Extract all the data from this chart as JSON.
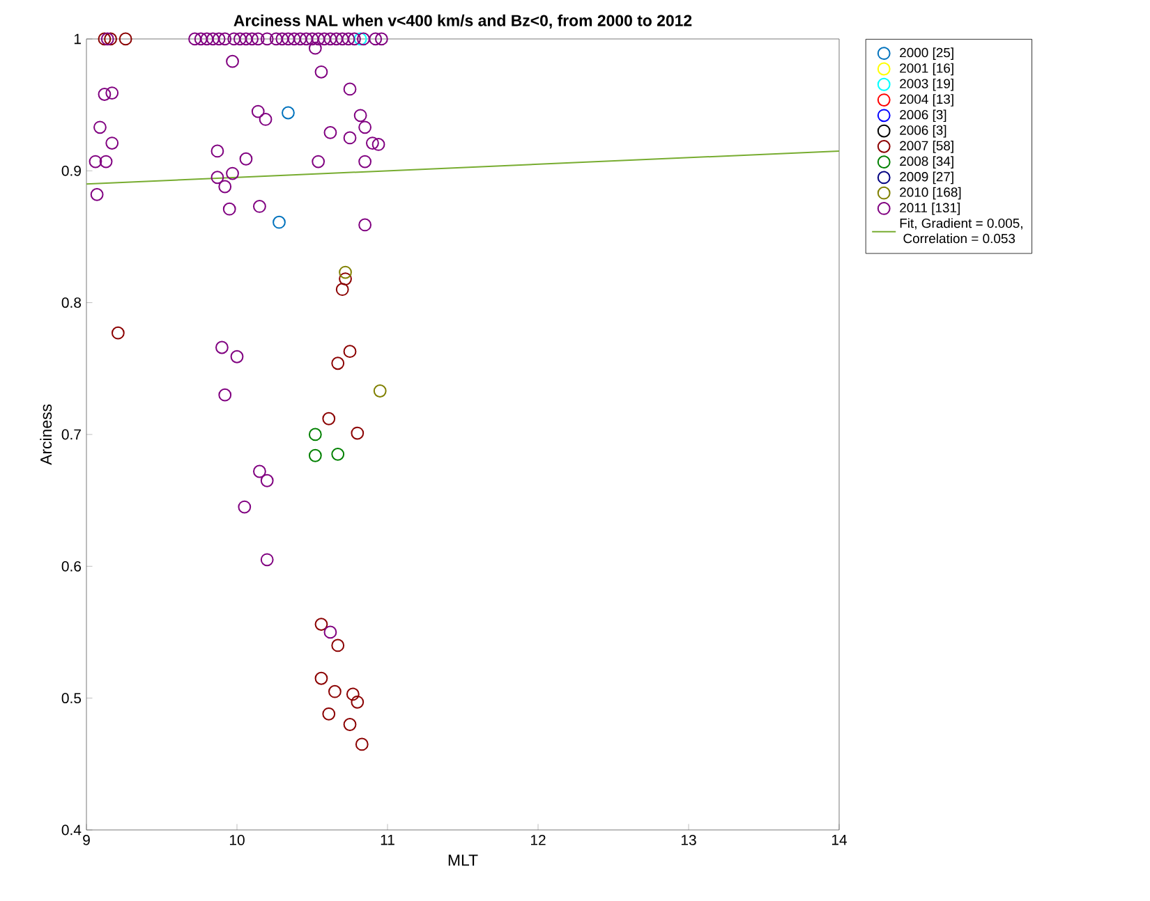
{
  "chart_data": {
    "type": "scatter",
    "title": "Arciness NAL when v<400 km/s and Bz<0, from 2000 to 2012",
    "xlabel": "MLT",
    "ylabel": "Arciness",
    "xlim": [
      9,
      14
    ],
    "ylim": [
      0.4,
      1
    ],
    "xticks": [
      9,
      10,
      11,
      12,
      13,
      14
    ],
    "yticks": [
      0.4,
      0.5,
      0.6,
      0.7,
      0.8,
      0.9,
      1
    ],
    "grid": false,
    "legend": "right",
    "marker": "circle",
    "series": [
      {
        "name": "2000 [25]",
        "color": "#0072bd",
        "x": [
          10.34,
          10.28
        ],
        "values": [
          0.944,
          0.861
        ]
      },
      {
        "name": "2001 [16]",
        "color": "#ffff00"
      },
      {
        "name": "2003 [19]",
        "color": "#00ffff",
        "x": [
          10.82
        ],
        "values": [
          1
        ]
      },
      {
        "name": "2004 [13]",
        "color": "#ff0000"
      },
      {
        "name": "2006 [3]",
        "color": "#0000ff"
      },
      {
        "name": "2006 [3]",
        "color": "#000000"
      },
      {
        "name": "2007 [58]",
        "color": "#8b0000",
        "x": [
          9.12,
          9.16,
          9.26,
          9.21,
          10.72,
          10.7,
          10.75,
          10.67,
          10.61,
          10.8,
          10.56,
          10.67,
          10.56,
          10.65,
          10.77,
          10.8,
          10.61,
          10.75,
          10.83
        ],
        "values": [
          1,
          1,
          1,
          0.777,
          0.818,
          0.81,
          0.763,
          0.754,
          0.712,
          0.701,
          0.556,
          0.54,
          0.515,
          0.505,
          0.503,
          0.497,
          0.488,
          0.48,
          0.465
        ]
      },
      {
        "name": "2008 [34]",
        "color": "#008000",
        "x": [
          10.52,
          10.52,
          10.67
        ],
        "values": [
          0.7,
          0.684,
          0.685
        ]
      },
      {
        "name": "2009 [27]",
        "color": "#000080"
      },
      {
        "name": "2010 [168]",
        "color": "#808000",
        "x": [
          10.72,
          10.95
        ],
        "values": [
          0.823,
          0.733
        ]
      },
      {
        "name": "2011 [131]",
        "color": "#800080",
        "x": [
          9.14,
          9.72,
          9.76,
          9.8,
          9.84,
          9.88,
          9.92,
          9.98,
          10.02,
          10.06,
          10.1,
          10.14,
          10.2,
          10.26,
          10.3,
          10.34,
          10.38,
          10.42,
          10.46,
          10.5,
          10.54,
          10.58,
          10.62,
          10.66,
          10.7,
          10.74,
          10.78,
          10.84,
          10.92,
          10.96,
          9.97,
          9.12,
          9.17,
          9.09,
          9.17,
          9.06,
          9.13,
          9.07,
          9.87,
          10.06,
          10.14,
          10.19,
          9.87,
          9.97,
          9.92,
          9.95,
          10.15,
          10.52,
          10.56,
          10.75,
          10.62,
          10.75,
          10.82,
          10.85,
          10.9,
          10.94,
          10.54,
          10.85,
          10.85,
          9.9,
          10.0,
          9.92,
          10.15,
          10.2,
          10.05,
          10.2,
          10.62
        ],
        "values": [
          1,
          1,
          1,
          1,
          1,
          1,
          1,
          1,
          1,
          1,
          1,
          1,
          1,
          1,
          1,
          1,
          1,
          1,
          1,
          1,
          1,
          1,
          1,
          1,
          1,
          1,
          1,
          1,
          1,
          1,
          0.983,
          0.958,
          0.959,
          0.933,
          0.921,
          0.907,
          0.907,
          0.882,
          0.915,
          0.909,
          0.945,
          0.939,
          0.895,
          0.898,
          0.888,
          0.871,
          0.873,
          0.993,
          0.975,
          0.962,
          0.929,
          0.925,
          0.942,
          0.933,
          0.921,
          0.92,
          0.907,
          0.907,
          0.859,
          0.766,
          0.759,
          0.73,
          0.672,
          0.665,
          0.645,
          0.605,
          0.55
        ]
      },
      {
        "name": "Fit, Gradient = 0.005,\n Correlation = 0.053",
        "type": "line",
        "line_style": "solid",
        "marker": "none",
        "color": "#77ac30",
        "x": [
          9,
          14
        ],
        "values": [
          0.89,
          0.915
        ]
      }
    ]
  }
}
